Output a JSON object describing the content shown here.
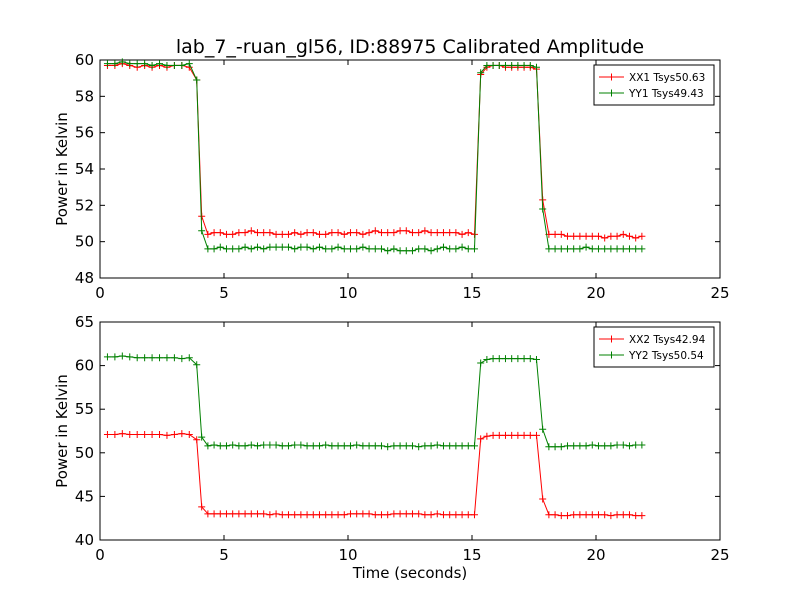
{
  "figure": {
    "title": "lab_7_-ruan_gl56, ID:88975 Calibrated Amplitude",
    "colors": {
      "xx": "#ff0000",
      "yy": "#008000",
      "axis": "#000000",
      "background": "#ffffff"
    }
  },
  "chart_data": [
    {
      "type": "line",
      "title": "lab_7_-ruan_gl56, ID:88975 Calibrated Amplitude",
      "xlabel": "",
      "ylabel": "Power in Kelvin",
      "xlim": [
        0,
        25
      ],
      "ylim": [
        48,
        60
      ],
      "xticks": [
        0,
        5,
        10,
        15,
        20,
        25
      ],
      "yticks": [
        48,
        50,
        52,
        54,
        56,
        58,
        60
      ],
      "grid": false,
      "legend_position": "top-right",
      "x": [
        0.3,
        0.6,
        0.9,
        1.2,
        1.5,
        1.8,
        2.1,
        2.4,
        2.7,
        3.0,
        3.3,
        3.6,
        3.9,
        4.1,
        4.35,
        4.6,
        4.85,
        5.1,
        5.35,
        5.6,
        5.85,
        6.1,
        6.35,
        6.6,
        6.85,
        7.1,
        7.35,
        7.6,
        7.85,
        8.1,
        8.35,
        8.6,
        8.85,
        9.1,
        9.35,
        9.6,
        9.85,
        10.1,
        10.35,
        10.6,
        10.85,
        11.1,
        11.35,
        11.6,
        11.85,
        12.1,
        12.35,
        12.6,
        12.85,
        13.1,
        13.35,
        13.6,
        13.85,
        14.1,
        14.35,
        14.6,
        14.85,
        15.1,
        15.35,
        15.6,
        15.85,
        16.1,
        16.35,
        16.6,
        16.85,
        17.1,
        17.35,
        17.6,
        17.85,
        18.1,
        18.35,
        18.6,
        18.85,
        19.1,
        19.35,
        19.6,
        19.85,
        20.1,
        20.35,
        20.6,
        20.85,
        21.1,
        21.35,
        21.6,
        21.85
      ],
      "series": [
        {
          "name": "XX1 Tsys50.63",
          "color": "#ff0000",
          "values": [
            59.7,
            59.7,
            59.8,
            59.7,
            59.6,
            59.7,
            59.6,
            59.7,
            59.6,
            59.7,
            59.7,
            59.6,
            58.9,
            51.4,
            50.4,
            50.5,
            50.5,
            50.4,
            50.4,
            50.5,
            50.5,
            50.6,
            50.5,
            50.5,
            50.5,
            50.4,
            50.4,
            50.4,
            50.5,
            50.4,
            50.5,
            50.5,
            50.4,
            50.4,
            50.5,
            50.5,
            50.4,
            50.5,
            50.5,
            50.4,
            50.5,
            50.6,
            50.5,
            50.5,
            50.5,
            50.6,
            50.6,
            50.5,
            50.5,
            50.6,
            50.5,
            50.5,
            50.5,
            50.5,
            50.5,
            50.4,
            50.5,
            50.4,
            59.2,
            59.6,
            59.7,
            59.7,
            59.6,
            59.6,
            59.6,
            59.6,
            59.6,
            59.5,
            52.3,
            50.4,
            50.4,
            50.4,
            50.3,
            50.3,
            50.3,
            50.3,
            50.3,
            50.3,
            50.2,
            50.3,
            50.3,
            50.4,
            50.3,
            50.2,
            50.3
          ]
        },
        {
          "name": "YY1 Tsys49.43",
          "color": "#008000",
          "values": [
            59.8,
            59.8,
            59.9,
            59.8,
            59.8,
            59.8,
            59.7,
            59.8,
            59.7,
            59.7,
            59.7,
            59.8,
            58.9,
            50.6,
            49.6,
            49.6,
            49.7,
            49.6,
            49.6,
            49.6,
            49.7,
            49.6,
            49.7,
            49.6,
            49.7,
            49.7,
            49.7,
            49.7,
            49.6,
            49.7,
            49.7,
            49.6,
            49.7,
            49.6,
            49.6,
            49.7,
            49.6,
            49.6,
            49.6,
            49.7,
            49.6,
            49.6,
            49.6,
            49.5,
            49.6,
            49.5,
            49.5,
            49.5,
            49.6,
            49.6,
            49.5,
            49.6,
            49.7,
            49.6,
            49.6,
            49.7,
            49.6,
            49.6,
            59.3,
            59.7,
            59.7,
            59.7,
            59.7,
            59.7,
            59.7,
            59.7,
            59.7,
            59.6,
            51.8,
            49.6,
            49.6,
            49.6,
            49.6,
            49.6,
            49.6,
            49.7,
            49.6,
            49.6,
            49.6,
            49.6,
            49.6,
            49.6,
            49.6,
            49.6,
            49.6
          ]
        }
      ]
    },
    {
      "type": "line",
      "title": "",
      "xlabel": "Time (seconds)",
      "ylabel": "Power in Kelvin",
      "xlim": [
        0,
        25
      ],
      "ylim": [
        40,
        65
      ],
      "xticks": [
        0,
        5,
        10,
        15,
        20,
        25
      ],
      "yticks": [
        40,
        45,
        50,
        55,
        60,
        65
      ],
      "grid": false,
      "legend_position": "top-right",
      "x": [
        0.3,
        0.6,
        0.9,
        1.2,
        1.5,
        1.8,
        2.1,
        2.4,
        2.7,
        3.0,
        3.3,
        3.6,
        3.9,
        4.1,
        4.35,
        4.6,
        4.85,
        5.1,
        5.35,
        5.6,
        5.85,
        6.1,
        6.35,
        6.6,
        6.85,
        7.1,
        7.35,
        7.6,
        7.85,
        8.1,
        8.35,
        8.6,
        8.85,
        9.1,
        9.35,
        9.6,
        9.85,
        10.1,
        10.35,
        10.6,
        10.85,
        11.1,
        11.35,
        11.6,
        11.85,
        12.1,
        12.35,
        12.6,
        12.85,
        13.1,
        13.35,
        13.6,
        13.85,
        14.1,
        14.35,
        14.6,
        14.85,
        15.1,
        15.35,
        15.6,
        15.85,
        16.1,
        16.35,
        16.6,
        16.85,
        17.1,
        17.35,
        17.6,
        17.85,
        18.1,
        18.35,
        18.6,
        18.85,
        19.1,
        19.35,
        19.6,
        19.85,
        20.1,
        20.35,
        20.6,
        20.85,
        21.1,
        21.35,
        21.6,
        21.85
      ],
      "series": [
        {
          "name": "XX2 Tsys42.94",
          "color": "#ff0000",
          "values": [
            52.1,
            52.1,
            52.2,
            52.1,
            52.1,
            52.1,
            52.1,
            52.1,
            52.0,
            52.1,
            52.2,
            52.1,
            51.5,
            43.8,
            43.0,
            43.0,
            43.0,
            43.0,
            43.0,
            43.0,
            43.0,
            43.0,
            43.0,
            43.0,
            42.9,
            43.0,
            42.9,
            42.9,
            42.9,
            42.9,
            42.9,
            42.9,
            42.9,
            42.9,
            42.9,
            42.9,
            42.9,
            43.0,
            43.0,
            43.0,
            43.0,
            42.9,
            42.9,
            42.9,
            43.0,
            43.0,
            43.0,
            43.0,
            43.0,
            42.9,
            42.9,
            43.0,
            42.9,
            42.9,
            42.9,
            42.9,
            42.9,
            42.9,
            51.6,
            51.9,
            52.0,
            52.0,
            52.0,
            52.0,
            52.0,
            52.0,
            52.0,
            52.0,
            44.7,
            42.9,
            42.9,
            42.8,
            42.8,
            42.9,
            42.9,
            42.9,
            42.9,
            42.9,
            42.9,
            42.8,
            42.9,
            42.9,
            42.9,
            42.8,
            42.8
          ]
        },
        {
          "name": "YY2 Tsys50.54",
          "color": "#008000",
          "values": [
            61.0,
            61.0,
            61.1,
            61.0,
            60.9,
            60.9,
            60.9,
            60.9,
            60.9,
            60.9,
            60.8,
            60.9,
            60.1,
            51.8,
            50.8,
            50.9,
            50.8,
            50.8,
            50.9,
            50.8,
            50.8,
            50.9,
            50.8,
            50.9,
            50.9,
            50.9,
            50.8,
            50.8,
            50.9,
            50.9,
            50.8,
            50.8,
            50.8,
            50.9,
            50.8,
            50.8,
            50.8,
            50.8,
            50.9,
            50.8,
            50.8,
            50.8,
            50.8,
            50.7,
            50.8,
            50.8,
            50.8,
            50.8,
            50.7,
            50.8,
            50.8,
            50.9,
            50.8,
            50.8,
            50.8,
            50.8,
            50.8,
            50.8,
            60.3,
            60.7,
            60.8,
            60.8,
            60.8,
            60.8,
            60.8,
            60.8,
            60.8,
            60.7,
            52.7,
            50.7,
            50.7,
            50.7,
            50.8,
            50.8,
            50.8,
            50.8,
            50.9,
            50.8,
            50.8,
            50.8,
            50.9,
            50.9,
            50.8,
            50.9,
            50.9
          ]
        }
      ]
    }
  ]
}
